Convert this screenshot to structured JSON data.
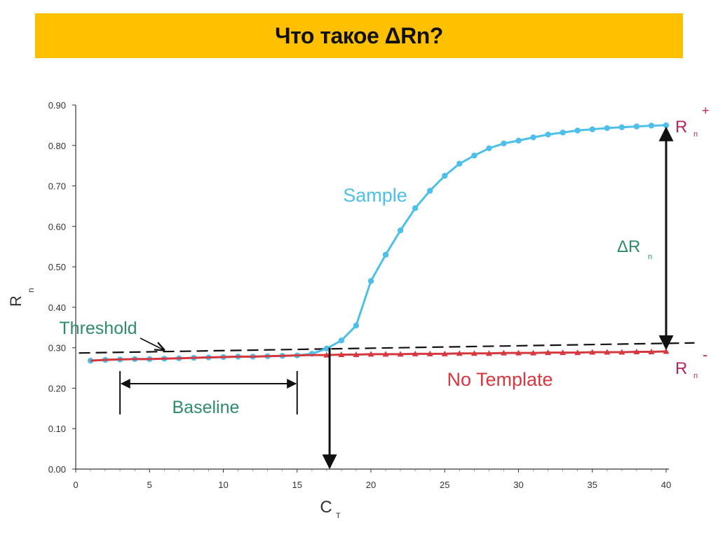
{
  "header": {
    "title": "Что такое ΔRn?"
  },
  "colors": {
    "title_bg": "#ffc000",
    "sample": "#4dbfe8",
    "no_template": "#d63840",
    "annotation_green": "#2e8b6b",
    "rn_label": "#b8245e"
  },
  "chart_data": {
    "type": "line",
    "xlabel": "C",
    "xlabel_sub": "T",
    "ylabel": "R",
    "ylabel_sub": "n",
    "xlim": [
      0,
      40
    ],
    "ylim": [
      0.0,
      0.9
    ],
    "xticks": [
      "0",
      "5",
      "10",
      "15",
      "20",
      "25",
      "30",
      "35",
      "40"
    ],
    "yticks": [
      "0.00",
      "0.10",
      "0.20",
      "0.30",
      "0.40",
      "0.50",
      "0.60",
      "0.70",
      "0.80",
      "0.90"
    ],
    "x": [
      1,
      2,
      3,
      4,
      5,
      6,
      7,
      8,
      9,
      10,
      11,
      12,
      13,
      14,
      15,
      16,
      17,
      18,
      19,
      20,
      21,
      22,
      23,
      24,
      25,
      26,
      27,
      28,
      29,
      30,
      31,
      32,
      33,
      34,
      35,
      36,
      37,
      38,
      39,
      40
    ],
    "series": [
      {
        "name": "Sample",
        "values": [
          0.268,
          0.27,
          0.271,
          0.272,
          0.272,
          0.273,
          0.274,
          0.275,
          0.276,
          0.277,
          0.278,
          0.278,
          0.279,
          0.28,
          0.281,
          0.285,
          0.298,
          0.318,
          0.355,
          0.465,
          0.53,
          0.59,
          0.645,
          0.688,
          0.725,
          0.755,
          0.775,
          0.793,
          0.805,
          0.812,
          0.82,
          0.827,
          0.832,
          0.837,
          0.84,
          0.843,
          0.845,
          0.847,
          0.849,
          0.85
        ]
      },
      {
        "name": "No Template",
        "values": [
          0.268,
          0.27,
          0.271,
          0.272,
          0.272,
          0.273,
          0.274,
          0.275,
          0.276,
          0.277,
          0.278,
          0.278,
          0.279,
          0.28,
          0.281,
          0.282,
          0.282,
          0.283,
          0.283,
          0.284,
          0.284,
          0.284,
          0.285,
          0.285,
          0.285,
          0.286,
          0.286,
          0.286,
          0.287,
          0.287,
          0.287,
          0.288,
          0.288,
          0.288,
          0.289,
          0.289,
          0.289,
          0.29,
          0.29,
          0.291
        ]
      }
    ],
    "threshold": {
      "label": "Threshold",
      "x": [
        0.5,
        40.5
      ],
      "y": [
        0.287,
        0.312
      ]
    },
    "baseline": {
      "label": "Baseline",
      "x_start": 3,
      "x_end": 15
    },
    "ct": {
      "x": 17.2
    },
    "delta_rn": {
      "label": "ΔR",
      "label_sub": "n",
      "x": 40,
      "y_top": 0.85,
      "y_bottom": 0.291
    },
    "rn_plus": {
      "label": "R",
      "sub": "n",
      "sup": "+"
    },
    "rn_minus": {
      "label": "R",
      "sub": "n",
      "sup": "-"
    }
  }
}
